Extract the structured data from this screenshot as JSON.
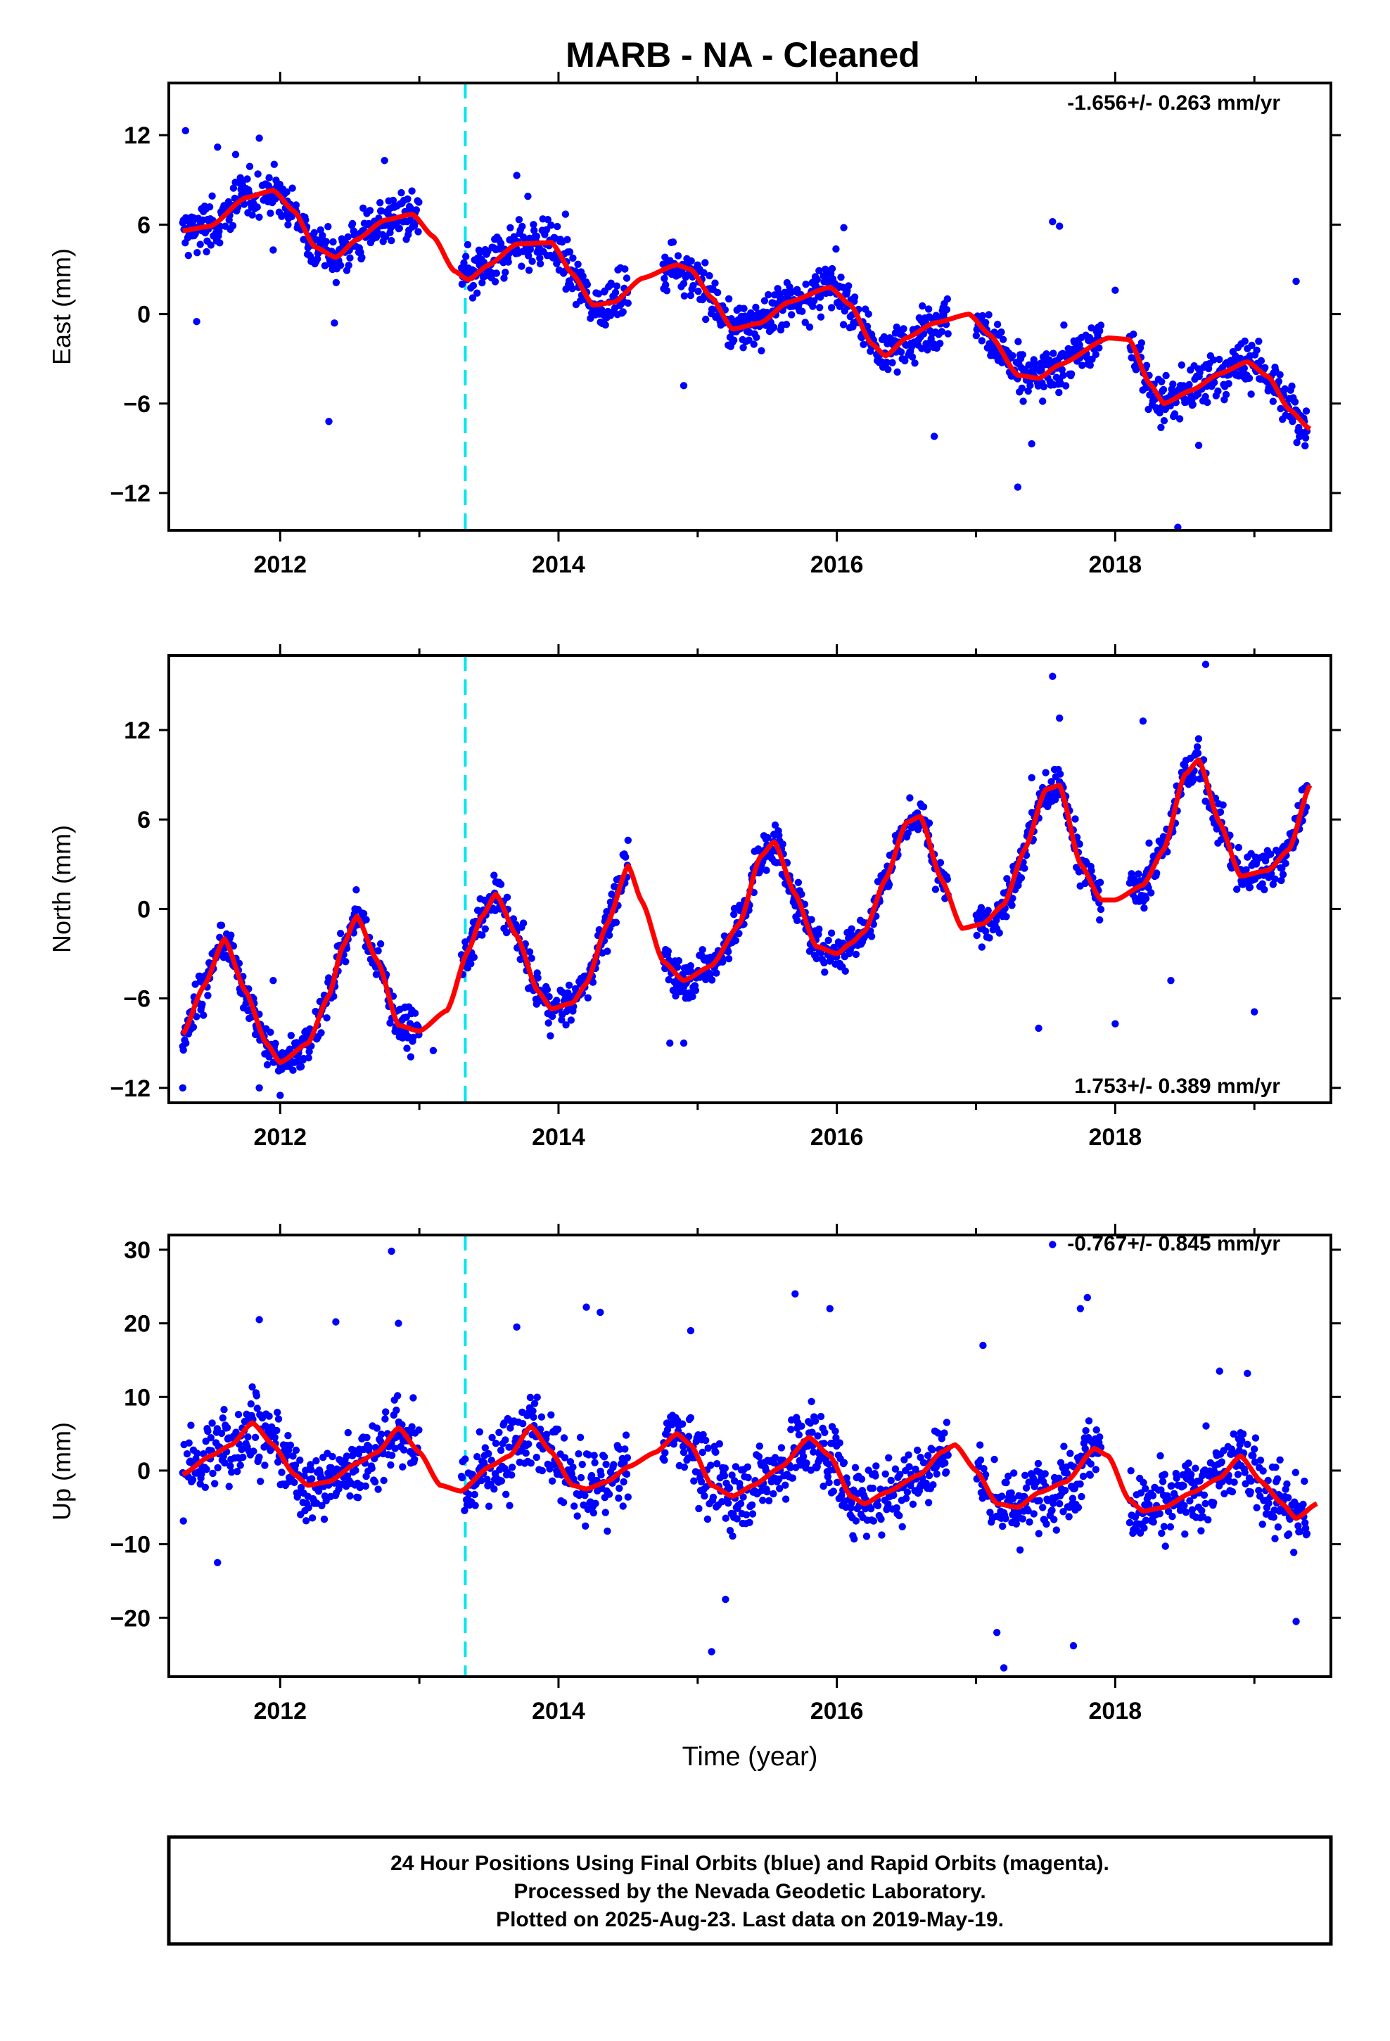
{
  "title": "MARB  - NA - Cleaned",
  "colors": {
    "data": "#0000ff",
    "model": "#ff0000",
    "marker": "#00e5ee",
    "axes": "#000000"
  },
  "chart_data": [
    {
      "type": "scatter",
      "ylabel": "East (mm)",
      "xlabel": "",
      "xlim": [
        2011.2,
        2019.55
      ],
      "ylim": [
        -14.5,
        15.5
      ],
      "yticks": [
        -12,
        -6,
        0,
        6,
        12
      ],
      "xticks": [
        2012,
        2014,
        2016,
        2018
      ],
      "vertical_marker_x": 2013.33,
      "rate_text": "-1.656+/- 0.263 mm/yr",
      "rate_position": "top-right",
      "series": [
        {
          "role": "model",
          "x": [
            2011.3,
            2011.5,
            2011.75,
            2011.95,
            2012.1,
            2012.25,
            2012.4,
            2012.55,
            2012.75,
            2012.95,
            2013.1,
            2013.25,
            2013.35,
            2013.5,
            2013.7,
            2013.95,
            2014.1,
            2014.25,
            2014.4,
            2014.6,
            2014.85,
            2014.95,
            2015.1,
            2015.25,
            2015.45,
            2015.65,
            2015.95,
            2016.1,
            2016.25,
            2016.35,
            2016.5,
            2016.7,
            2016.95,
            2017.1,
            2017.3,
            2017.45,
            2017.6,
            2017.95,
            2018.1,
            2018.25,
            2018.35,
            2018.55,
            2018.75,
            2018.95,
            2019.1,
            2019.25,
            2019.4
          ],
          "values": [
            5.6,
            5.9,
            7.8,
            8.3,
            6.9,
            4.5,
            3.8,
            5.0,
            6.3,
            6.7,
            5.2,
            2.9,
            2.3,
            3.3,
            4.7,
            4.8,
            2.7,
            0.6,
            0.8,
            2.4,
            3.3,
            3.0,
            1.1,
            -1.0,
            -0.6,
            0.8,
            1.8,
            0.6,
            -2.0,
            -2.8,
            -1.6,
            -0.6,
            0.0,
            -1.4,
            -4.1,
            -4.3,
            -3.4,
            -1.6,
            -1.7,
            -4.7,
            -6.0,
            -5.1,
            -4.0,
            -3.2,
            -4.2,
            -6.4,
            -7.7
          ]
        },
        {
          "role": "outliers",
          "x": [
            2011.32,
            2011.4,
            2011.55,
            2011.68,
            2011.85,
            2011.95,
            2012.35,
            2012.39,
            2012.75,
            2013.7,
            2013.78,
            2014.05,
            2014.9,
            2016.05,
            2016.7,
            2017.3,
            2017.4,
            2017.55,
            2017.6,
            2018.0,
            2018.45,
            2018.6,
            2019.3
          ],
          "values": [
            12.3,
            -0.5,
            11.2,
            10.7,
            11.8,
            4.3,
            -7.2,
            -0.6,
            10.3,
            9.3,
            7.9,
            6.7,
            -4.8,
            5.8,
            -8.2,
            -11.6,
            -8.7,
            6.2,
            5.9,
            1.6,
            -14.3,
            -8.8,
            2.2
          ]
        }
      ]
    },
    {
      "type": "scatter",
      "ylabel": "North (mm)",
      "xlabel": "",
      "xlim": [
        2011.2,
        2019.55
      ],
      "ylim": [
        -13,
        17
      ],
      "yticks": [
        -12,
        -6,
        0,
        6,
        12
      ],
      "xticks": [
        2012,
        2014,
        2016,
        2018
      ],
      "vertical_marker_x": 2013.33,
      "rate_text": "1.753+/- 0.389 mm/yr",
      "rate_position": "bottom-right",
      "series": [
        {
          "role": "model",
          "x": [
            2011.3,
            2011.45,
            2011.6,
            2011.75,
            2011.9,
            2012.0,
            2012.2,
            2012.35,
            2012.45,
            2012.55,
            2012.7,
            2012.85,
            2013.0,
            2013.2,
            2013.35,
            2013.45,
            2013.55,
            2013.7,
            2013.85,
            2013.95,
            2014.1,
            2014.2,
            2014.35,
            2014.5,
            2014.6,
            2014.75,
            2014.9,
            2015.1,
            2015.3,
            2015.45,
            2015.55,
            2015.7,
            2015.85,
            2016.0,
            2016.1,
            2016.2,
            2016.35,
            2016.5,
            2016.6,
            2016.75,
            2016.9,
            2017.05,
            2017.2,
            2017.35,
            2017.5,
            2017.6,
            2017.75,
            2017.9,
            2018.0,
            2018.2,
            2018.35,
            2018.5,
            2018.6,
            2018.75,
            2018.9,
            2019.1,
            2019.25,
            2019.4
          ],
          "values": [
            -8.4,
            -5.2,
            -2.0,
            -5.5,
            -9.0,
            -10.3,
            -9.0,
            -5.8,
            -2.5,
            -0.5,
            -3.5,
            -7.8,
            -8.2,
            -6.8,
            -2.8,
            -0.5,
            1.0,
            -1.8,
            -5.5,
            -6.7,
            -6.3,
            -5.0,
            -1.0,
            2.9,
            0.5,
            -3.5,
            -4.8,
            -3.8,
            -1.0,
            3.5,
            4.5,
            1.0,
            -2.5,
            -3.0,
            -2.3,
            -1.5,
            2.0,
            5.8,
            6.2,
            2.0,
            -1.3,
            -1.0,
            0.3,
            4.0,
            8.0,
            8.3,
            3.0,
            0.6,
            0.6,
            1.6,
            4.0,
            9.0,
            10.0,
            5.8,
            2.2,
            2.6,
            4.0,
            8.3
          ]
        },
        {
          "role": "outliers",
          "x": [
            2011.3,
            2011.85,
            2011.95,
            2012.0,
            2013.1,
            2014.8,
            2014.9,
            2017.4,
            2017.45,
            2017.55,
            2017.6,
            2018.0,
            2018.2,
            2018.4,
            2018.65,
            2019.0
          ],
          "values": [
            -12.0,
            -12.0,
            -4.8,
            -12.5,
            -9.5,
            -9.0,
            -9.0,
            8.8,
            -8.0,
            15.6,
            12.8,
            -7.7,
            12.6,
            -4.8,
            16.4,
            -6.9
          ]
        }
      ]
    },
    {
      "type": "scatter",
      "ylabel": "Up (mm)",
      "xlabel": "Time (year)",
      "xlim": [
        2011.2,
        2019.55
      ],
      "ylim": [
        -28,
        32
      ],
      "yticks": [
        -20,
        -10,
        0,
        10,
        20,
        30
      ],
      "xticks": [
        2012,
        2014,
        2016,
        2018
      ],
      "vertical_marker_x": 2013.33,
      "rate_text": "-0.767+/- 0.845 mm/yr",
      "rate_position": "top-right",
      "series": [
        {
          "role": "model",
          "x": [
            2011.3,
            2011.5,
            2011.65,
            2011.8,
            2011.95,
            2012.1,
            2012.2,
            2012.35,
            2012.55,
            2012.7,
            2012.85,
            2013.0,
            2013.15,
            2013.3,
            2013.5,
            2013.65,
            2013.8,
            2013.95,
            2014.1,
            2014.2,
            2014.35,
            2014.5,
            2014.7,
            2014.85,
            2014.95,
            2015.1,
            2015.25,
            2015.4,
            2015.6,
            2015.8,
            2015.95,
            2016.1,
            2016.2,
            2016.35,
            2016.6,
            2016.75,
            2016.85,
            2017.0,
            2017.15,
            2017.3,
            2017.45,
            2017.65,
            2017.85,
            2017.95,
            2018.1,
            2018.2,
            2018.35,
            2018.55,
            2018.75,
            2018.9,
            2019.05,
            2019.2,
            2019.3,
            2019.45
          ],
          "values": [
            -0.5,
            2.0,
            3.5,
            6.5,
            3.5,
            -0.5,
            -2.0,
            -1.5,
            1.0,
            2.5,
            5.8,
            2.5,
            -2.0,
            -2.8,
            0.5,
            2.0,
            6.0,
            2.5,
            -2.0,
            -2.5,
            -1.5,
            0.5,
            2.5,
            5.0,
            3.5,
            -2.0,
            -3.5,
            -2.0,
            0.5,
            4.5,
            2.0,
            -3.5,
            -4.5,
            -3.0,
            -0.5,
            2.5,
            3.5,
            0.0,
            -4.5,
            -5.0,
            -3.0,
            -1.5,
            3.0,
            2.0,
            -4.0,
            -5.5,
            -5.0,
            -3.0,
            -1.0,
            2.0,
            -1.5,
            -4.5,
            -6.5,
            -4.5
          ]
        },
        {
          "role": "outliers",
          "x": [
            2011.55,
            2011.85,
            2012.4,
            2012.8,
            2012.85,
            2013.7,
            2014.2,
            2014.3,
            2014.95,
            2015.1,
            2015.2,
            2015.7,
            2015.95,
            2017.05,
            2017.15,
            2017.2,
            2017.55,
            2017.7,
            2017.75,
            2017.8,
            2018.75,
            2018.95,
            2019.3
          ],
          "values": [
            -12.5,
            20.5,
            20.2,
            29.8,
            20.0,
            19.5,
            22.2,
            21.5,
            19.0,
            -24.6,
            -17.5,
            24.0,
            22.0,
            17.0,
            -22.0,
            -26.8,
            30.7,
            -23.8,
            22.0,
            23.5,
            13.5,
            13.2,
            -20.5
          ]
        }
      ]
    }
  ],
  "footer": {
    "line1": "24 Hour Positions Using Final Orbits (blue) and Rapid Orbits (magenta).",
    "line2": "Processed by the Nevada Geodetic Laboratory.",
    "line3": "Plotted on 2025-Aug-23. Last data on 2019-May-19."
  }
}
